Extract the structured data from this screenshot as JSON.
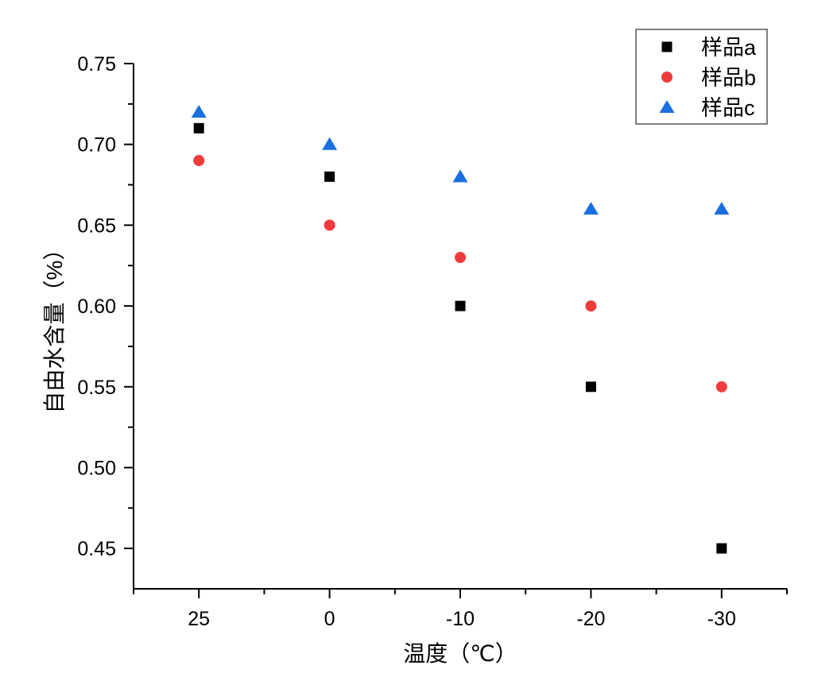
{
  "chart_data": {
    "type": "scatter",
    "title": "",
    "xlabel": "温度（℃）",
    "ylabel": "自由水含量（%）",
    "categories": [
      "25",
      "0",
      "-10",
      "-20",
      "-30"
    ],
    "ylim": [
      0.425,
      0.75
    ],
    "yticks": [
      "0.45",
      "0.50",
      "0.55",
      "0.60",
      "0.65",
      "0.70",
      "0.75"
    ],
    "grid": false,
    "legend_position": "top-right",
    "series": [
      {
        "name": "样品a",
        "marker": "square",
        "color": "#000000",
        "values": [
          0.71,
          0.68,
          0.6,
          0.55,
          0.45
        ]
      },
      {
        "name": "样品b",
        "marker": "circle",
        "color": "#ef3b3b",
        "values": [
          0.69,
          0.65,
          0.63,
          0.6,
          0.55
        ]
      },
      {
        "name": "样品c",
        "marker": "triangle",
        "color": "#1a6fdf",
        "values": [
          0.72,
          0.7,
          0.68,
          0.66,
          0.66
        ]
      }
    ]
  }
}
